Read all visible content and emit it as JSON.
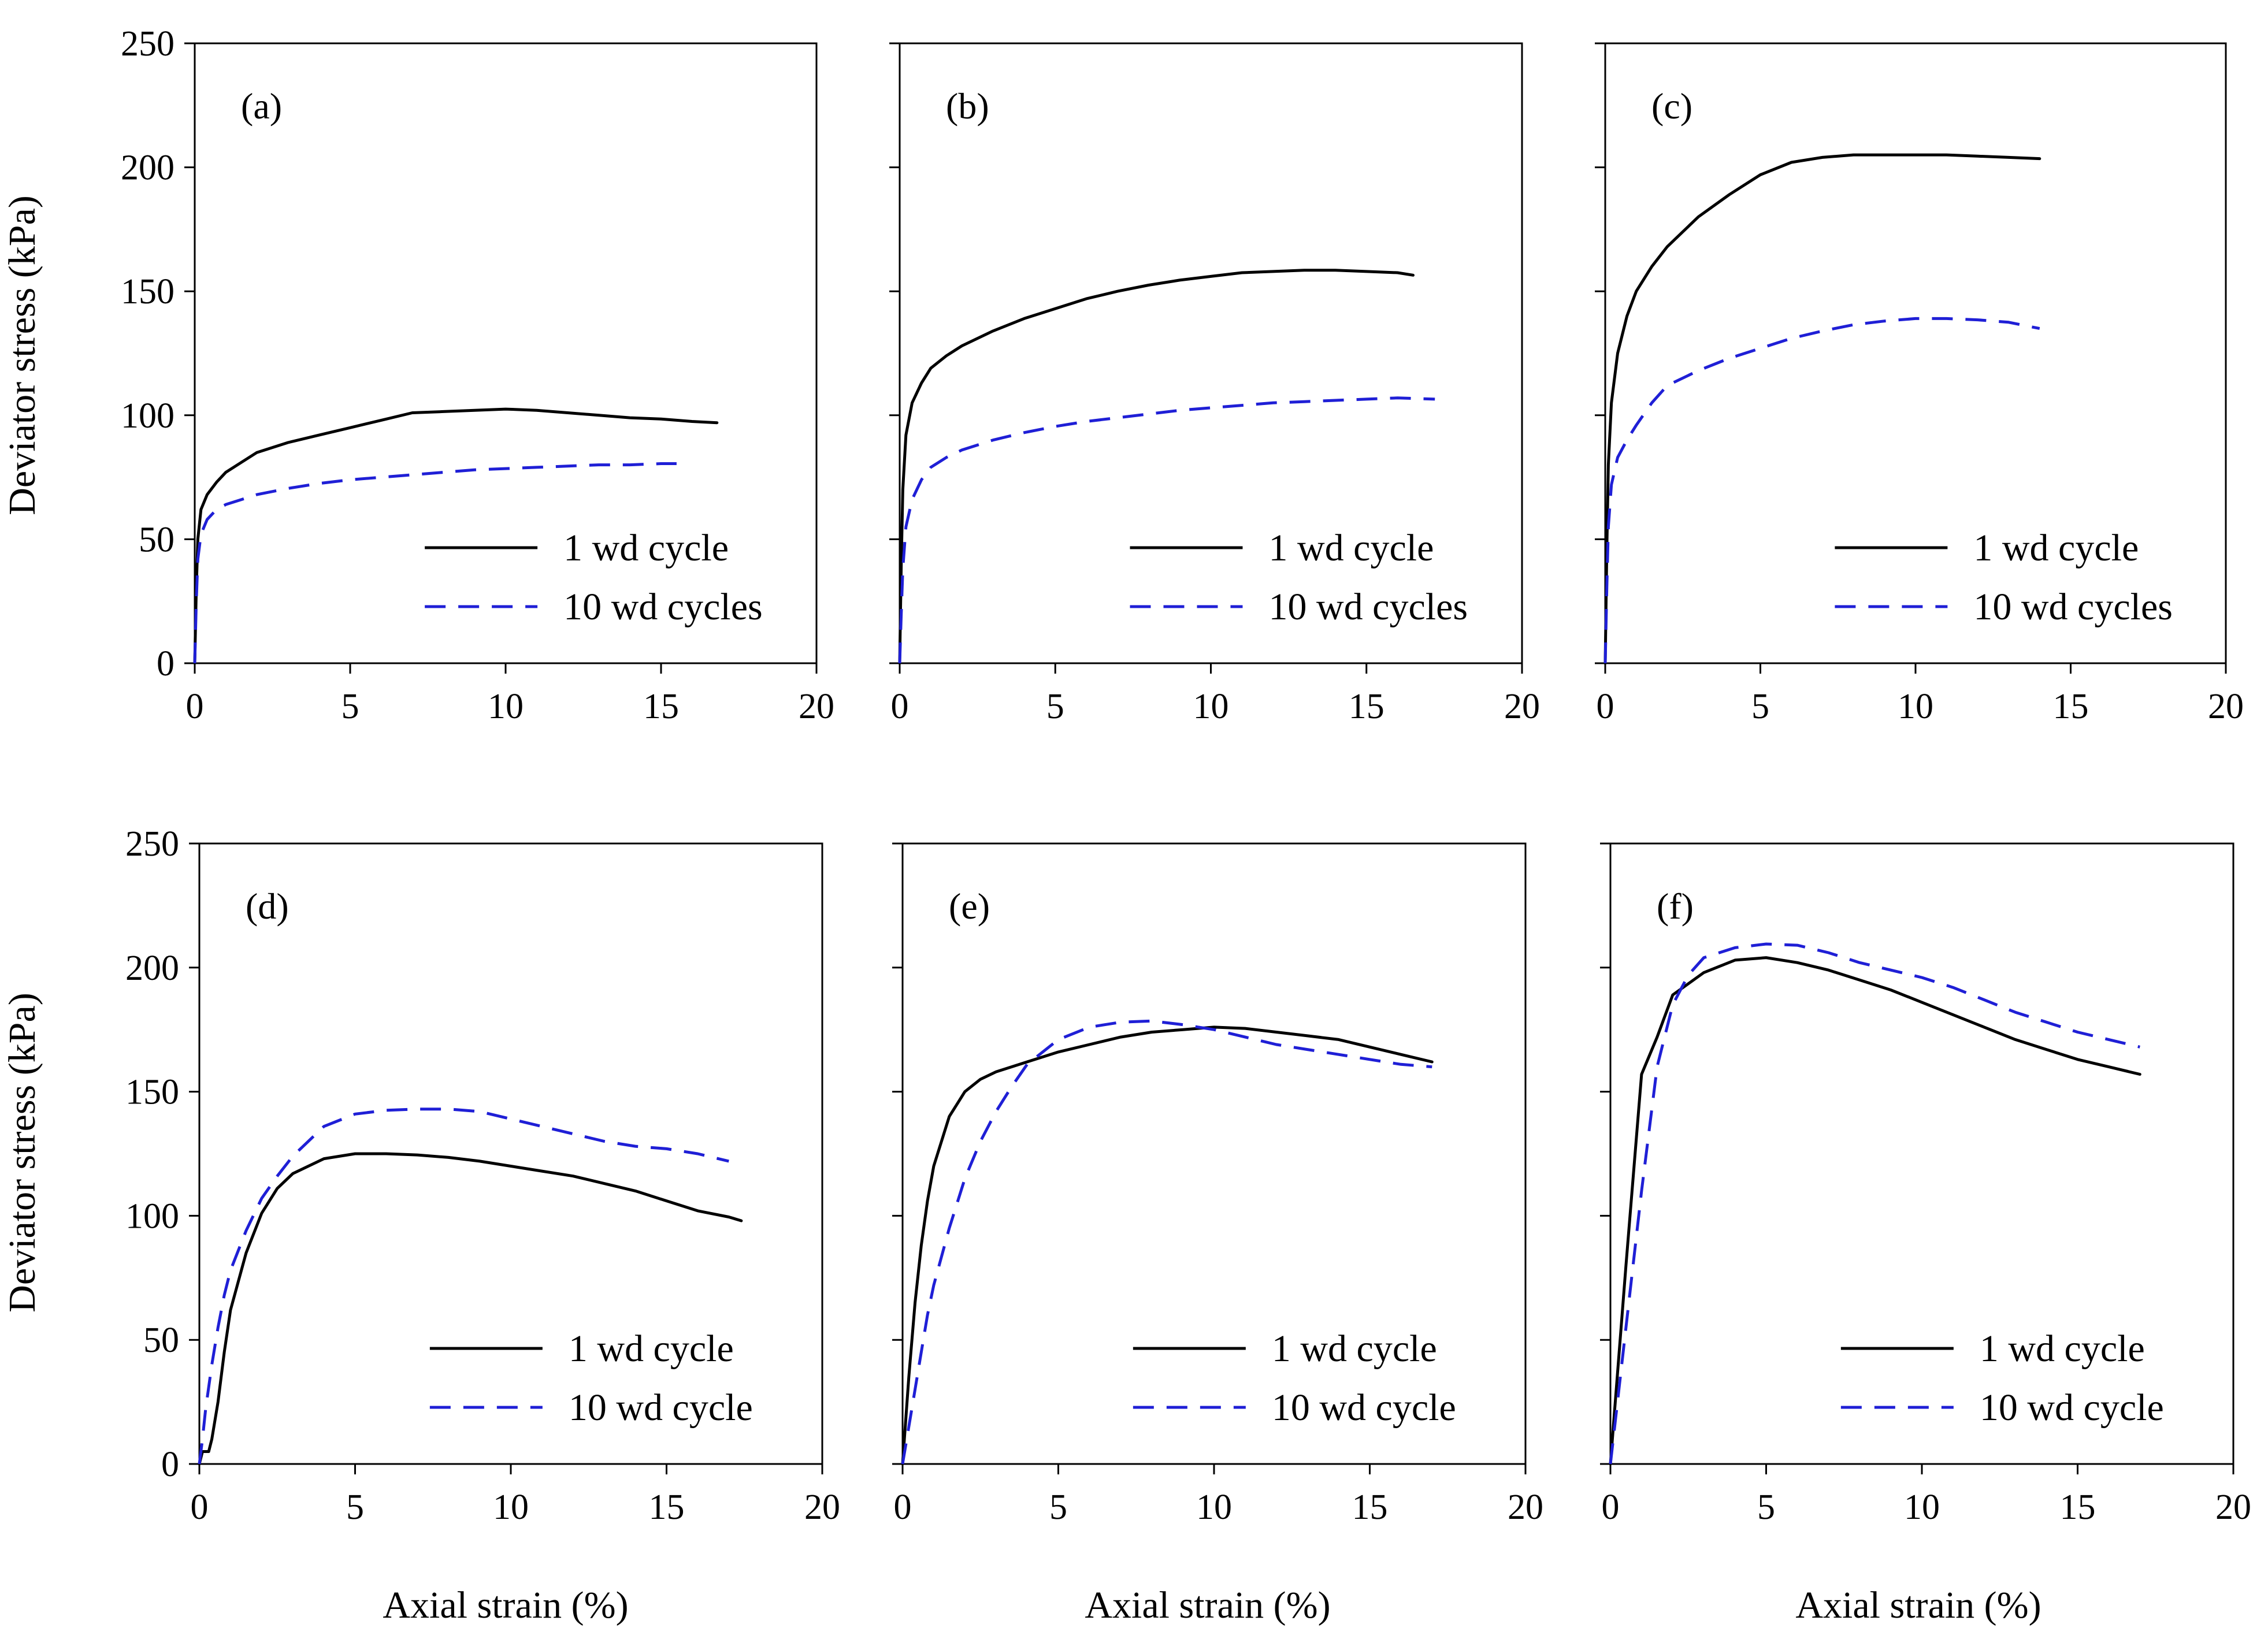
{
  "figure": {
    "y_axis_title": "Deviator stress (kPa)",
    "x_axis_title": "Axial strain (%)"
  },
  "colors": {
    "series_1": "#000000",
    "series_2": "#1f1fd6",
    "axis": "#000000"
  },
  "chart_data": [
    {
      "type": "line",
      "panel": "(a)",
      "xlim": [
        0,
        20
      ],
      "ylim": [
        0,
        250
      ],
      "x_ticks": [
        0,
        5,
        10,
        15,
        20
      ],
      "y_ticks": [
        0,
        50,
        100,
        150,
        200,
        250
      ],
      "legend_position": "bottom-right",
      "series": [
        {
          "name": "1 wd cycle",
          "style": "solid",
          "x": [
            0,
            0.05,
            0.1,
            0.2,
            0.4,
            0.7,
            1,
            1.5,
            2,
            3,
            4,
            5,
            6,
            7,
            8,
            9,
            10,
            11,
            12,
            13,
            14,
            15,
            16,
            16.8
          ],
          "y": [
            0,
            30,
            50,
            62,
            68,
            73,
            77,
            81,
            85,
            89,
            92,
            95,
            98,
            101,
            101.5,
            102,
            102.5,
            102,
            101,
            100,
            99,
            98.5,
            97.5,
            97
          ]
        },
        {
          "name": "10 wd cycles",
          "style": "dashed",
          "x": [
            0,
            0.05,
            0.1,
            0.2,
            0.4,
            0.7,
            1,
            1.5,
            2,
            3,
            4,
            5,
            6,
            7,
            8,
            9,
            10,
            11,
            12,
            13,
            14,
            15,
            15.5
          ],
          "y": [
            0,
            25,
            42,
            52,
            58,
            62,
            64,
            66,
            68,
            70.5,
            72.5,
            74,
            75,
            76,
            77,
            78,
            78.5,
            79,
            79.5,
            80,
            80,
            80.5,
            80.5
          ]
        }
      ]
    },
    {
      "type": "line",
      "panel": "(b)",
      "xlim": [
        0,
        20
      ],
      "ylim": [
        0,
        250
      ],
      "x_ticks": [
        0,
        5,
        10,
        15,
        20
      ],
      "y_ticks": [
        0,
        50,
        100,
        150,
        200,
        250
      ],
      "legend_position": "bottom-right",
      "series": [
        {
          "name": "1 wd cycle",
          "style": "solid",
          "x": [
            0,
            0.05,
            0.1,
            0.2,
            0.4,
            0.7,
            1,
            1.5,
            2,
            3,
            4,
            5,
            6,
            7,
            8,
            9,
            10,
            11,
            12,
            13,
            14,
            15,
            16,
            16.5
          ],
          "y": [
            0,
            40,
            70,
            92,
            105,
            113,
            119,
            124,
            128,
            134,
            139,
            143,
            147,
            150,
            152.5,
            154.5,
            156,
            157.5,
            158,
            158.5,
            158.5,
            158,
            157.5,
            156.5
          ]
        },
        {
          "name": "10 wd cycles",
          "style": "dashed",
          "x": [
            0,
            0.05,
            0.1,
            0.2,
            0.4,
            0.7,
            1,
            1.5,
            2,
            3,
            4,
            5,
            6,
            7,
            8,
            9,
            10,
            11,
            12,
            13,
            14,
            15,
            16,
            17.2
          ],
          "y": [
            0,
            20,
            38,
            55,
            66,
            74,
            79,
            83,
            86,
            90,
            93,
            95.5,
            97.5,
            99,
            100.5,
            102,
            103,
            104,
            105,
            105.5,
            106,
            106.5,
            107,
            106.5
          ]
        }
      ]
    },
    {
      "type": "line",
      "panel": "(c)",
      "xlim": [
        0,
        20
      ],
      "ylim": [
        0,
        250
      ],
      "x_ticks": [
        0,
        5,
        10,
        15,
        20
      ],
      "y_ticks": [
        0,
        50,
        100,
        150,
        200,
        250
      ],
      "legend_position": "bottom-right",
      "series": [
        {
          "name": "1 wd cycle",
          "style": "solid",
          "x": [
            0,
            0.05,
            0.1,
            0.2,
            0.4,
            0.7,
            1,
            1.5,
            2,
            3,
            4,
            5,
            6,
            7,
            8,
            9,
            10,
            11,
            12,
            13,
            14
          ],
          "y": [
            0,
            45,
            80,
            105,
            125,
            140,
            150,
            160,
            168,
            180,
            189,
            197,
            202,
            204,
            205,
            205,
            205,
            205,
            204.5,
            204,
            203.5
          ]
        },
        {
          "name": "10 wd cycles",
          "style": "dashed",
          "x": [
            0,
            0.05,
            0.1,
            0.2,
            0.4,
            0.7,
            1,
            1.5,
            2,
            3,
            4,
            5,
            6,
            7,
            8,
            9,
            10,
            11,
            12,
            13,
            14
          ],
          "y": [
            0,
            30,
            55,
            72,
            83,
            90,
            96,
            105,
            112,
            118,
            123,
            127,
            131,
            134,
            136.5,
            138,
            139,
            139,
            138.5,
            137.5,
            135
          ]
        }
      ]
    },
    {
      "type": "line",
      "panel": "(d)",
      "xlim": [
        0,
        20
      ],
      "ylim": [
        0,
        250
      ],
      "x_ticks": [
        0,
        5,
        10,
        15,
        20
      ],
      "y_ticks": [
        0,
        50,
        100,
        150,
        200,
        250
      ],
      "legend_position": "bottom-right",
      "series": [
        {
          "name": "1 wd cycle",
          "style": "solid",
          "x": [
            0,
            0.1,
            0.2,
            0.3,
            0.4,
            0.6,
            0.8,
            1,
            1.5,
            2,
            2.5,
            3,
            4,
            5,
            6,
            7,
            8,
            9,
            10,
            11,
            12,
            13,
            14,
            15,
            16,
            17,
            17.4
          ],
          "y": [
            0,
            5,
            5,
            5,
            10,
            25,
            45,
            62,
            85,
            101,
            111,
            117,
            123,
            125,
            125,
            124.5,
            123.5,
            122,
            120,
            118,
            116,
            113,
            110,
            106,
            102,
            99.5,
            98
          ]
        },
        {
          "name": "10 wd cycle",
          "style": "dashed",
          "x": [
            0,
            0.1,
            0.2,
            0.4,
            0.6,
            0.8,
            1,
            1.5,
            2,
            2.5,
            3,
            4,
            5,
            6,
            7,
            8,
            9,
            10,
            11,
            12,
            13,
            14,
            15,
            16,
            17
          ],
          "y": [
            0,
            10,
            22,
            40,
            55,
            68,
            78,
            94,
            107,
            116,
            124,
            136,
            141,
            142.5,
            143,
            143,
            142,
            139,
            136,
            133,
            130,
            128,
            127,
            125,
            122
          ]
        }
      ]
    },
    {
      "type": "line",
      "panel": "(e)",
      "xlim": [
        0,
        20
      ],
      "ylim": [
        0,
        250
      ],
      "x_ticks": [
        0,
        5,
        10,
        15,
        20
      ],
      "y_ticks": [
        0,
        50,
        100,
        150,
        200,
        250
      ],
      "legend_position": "bottom-right",
      "series": [
        {
          "name": "1 wd cycle",
          "style": "solid",
          "x": [
            0,
            0.2,
            0.4,
            0.6,
            0.8,
            1,
            1.5,
            2,
            2.5,
            3,
            4,
            5,
            6,
            7,
            8,
            9,
            10,
            11,
            12,
            13,
            14,
            15,
            16,
            17
          ],
          "y": [
            0,
            35,
            65,
            88,
            106,
            120,
            140,
            150,
            155,
            158,
            162,
            166,
            169,
            172,
            174,
            175,
            176,
            175.5,
            174,
            172.5,
            171,
            168,
            165,
            162
          ]
        },
        {
          "name": "10 wd cycle",
          "style": "dashed",
          "x": [
            0,
            0.2,
            0.4,
            0.6,
            0.8,
            1,
            1.5,
            2,
            2.5,
            3,
            3.5,
            4,
            5,
            6,
            7,
            8,
            9,
            10,
            11,
            12,
            13,
            14,
            15,
            16,
            17
          ],
          "y": [
            0,
            15,
            30,
            45,
            60,
            72,
            95,
            115,
            130,
            142,
            152,
            161,
            171,
            176,
            178,
            178.5,
            177,
            175,
            172,
            169,
            167,
            165,
            163,
            161,
            160
          ]
        }
      ]
    },
    {
      "type": "line",
      "panel": "(f)",
      "xlim": [
        0,
        20
      ],
      "ylim": [
        0,
        250
      ],
      "x_ticks": [
        0,
        5,
        10,
        15,
        20
      ],
      "y_ticks": [
        0,
        50,
        100,
        150,
        200,
        250
      ],
      "legend_position": "bottom-right",
      "series": [
        {
          "name": "1 wd cycle",
          "style": "solid",
          "x": [
            0,
            0.5,
            1,
            1.5,
            2,
            3,
            4,
            5,
            6,
            7,
            8,
            9,
            10,
            11,
            12,
            13,
            14,
            15,
            16,
            17
          ],
          "y": [
            0,
            80,
            157,
            172,
            189,
            198,
            203,
            204,
            202,
            199,
            195,
            191,
            186,
            181,
            176,
            171,
            167,
            163,
            160,
            157
          ]
        },
        {
          "name": "10 wd cycle",
          "style": "dashed",
          "x": [
            0,
            0.5,
            1,
            1.5,
            2,
            2.5,
            3,
            4,
            5,
            6,
            7,
            8,
            9,
            10,
            11,
            12,
            13,
            14,
            15,
            16,
            17
          ],
          "y": [
            0,
            55,
            110,
            160,
            185,
            197,
            204,
            208,
            209.5,
            209,
            206,
            202,
            199,
            196,
            192,
            187,
            182,
            178,
            174,
            171,
            168
          ]
        }
      ]
    }
  ]
}
